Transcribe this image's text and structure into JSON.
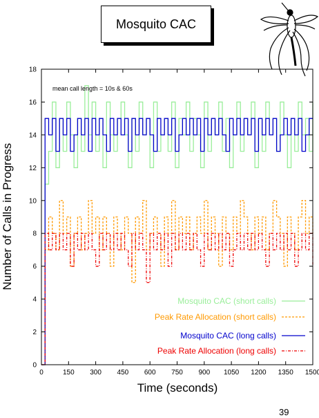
{
  "slide": {
    "title": "Mosquito CAC",
    "page_number": "39"
  },
  "chart_data": {
    "type": "line",
    "annotation": "mean call length = 10s & 60s",
    "xlabel": "Time (seconds)",
    "ylabel": "Number of Calls in Progress",
    "xlim": [
      0,
      1500
    ],
    "ylim": [
      0,
      18
    ],
    "x_ticks": [
      0,
      150,
      300,
      450,
      600,
      750,
      900,
      1050,
      1200,
      1350,
      1500
    ],
    "y_ticks": [
      0,
      2,
      4,
      6,
      8,
      10,
      12,
      14,
      16,
      18
    ],
    "grid": false,
    "legend_position": "bottom-right",
    "series": [
      {
        "name": "Mosquito CAC (short calls)",
        "color": "#99ee99",
        "dash": "solid",
        "x": [
          0,
          20,
          40,
          60,
          80,
          100,
          120,
          140,
          160,
          180,
          200,
          220,
          240,
          260,
          280,
          300,
          320,
          340,
          360,
          380,
          400,
          420,
          440,
          460,
          480,
          500,
          520,
          540,
          560,
          580,
          600,
          620,
          640,
          660,
          680,
          700,
          720,
          740,
          760,
          780,
          800,
          820,
          840,
          860,
          880,
          900,
          920,
          940,
          960,
          980,
          1000,
          1020,
          1040,
          1060,
          1080,
          1100,
          1120,
          1140,
          1160,
          1180,
          1200,
          1220,
          1240,
          1260,
          1280,
          1300,
          1320,
          1340,
          1360,
          1380,
          1400,
          1420,
          1440,
          1460,
          1480,
          1500
        ],
        "y": [
          0,
          11,
          13,
          16,
          12,
          15,
          13,
          16,
          14,
          12,
          15,
          13,
          17,
          14,
          16,
          13,
          15,
          12,
          16,
          14,
          13,
          15,
          16,
          14,
          12,
          15,
          13,
          16,
          14,
          15,
          12,
          16,
          13,
          14,
          15,
          13,
          16,
          12,
          15,
          14,
          16,
          13,
          15,
          14,
          12,
          16,
          13,
          15,
          14,
          16,
          13,
          15,
          12,
          14,
          16,
          13,
          15,
          14,
          16,
          12,
          15,
          13,
          16,
          14,
          15,
          13,
          16,
          14,
          12,
          15,
          13,
          16,
          14,
          15,
          13,
          16
        ]
      },
      {
        "name": "Peak Rate Allocation (short calls)",
        "color": "#ff9900",
        "dash": "3,2",
        "x": [
          0,
          20,
          40,
          60,
          80,
          100,
          120,
          140,
          160,
          180,
          200,
          220,
          240,
          260,
          280,
          300,
          320,
          340,
          360,
          380,
          400,
          420,
          440,
          460,
          480,
          500,
          520,
          540,
          560,
          580,
          600,
          620,
          640,
          660,
          680,
          700,
          720,
          740,
          760,
          780,
          800,
          820,
          840,
          860,
          880,
          900,
          920,
          940,
          960,
          980,
          1000,
          1020,
          1040,
          1060,
          1080,
          1100,
          1120,
          1140,
          1160,
          1180,
          1200,
          1220,
          1240,
          1260,
          1280,
          1300,
          1320,
          1340,
          1360,
          1380,
          1400,
          1420,
          1440,
          1460,
          1480,
          1500
        ],
        "y": [
          0,
          7,
          9,
          8,
          7,
          10,
          8,
          9,
          6,
          8,
          9,
          7,
          8,
          10,
          8,
          9,
          7,
          9,
          8,
          6,
          9,
          8,
          7,
          9,
          8,
          5,
          9,
          8,
          10,
          7,
          8,
          9,
          8,
          6,
          9,
          8,
          10,
          7,
          9,
          8,
          9,
          7,
          8,
          9,
          8,
          10,
          7,
          9,
          8,
          6,
          9,
          8,
          7,
          9,
          8,
          10,
          9,
          8,
          7,
          9,
          8,
          9,
          7,
          8,
          10,
          9,
          8,
          6,
          9,
          8,
          7,
          9,
          10,
          8,
          9,
          8
        ]
      },
      {
        "name": "Mosquito CAC (long calls)",
        "color": "#0000cc",
        "dash": "solid",
        "x": [
          0,
          20,
          40,
          60,
          80,
          100,
          120,
          140,
          160,
          180,
          200,
          220,
          240,
          260,
          280,
          300,
          320,
          340,
          360,
          380,
          400,
          420,
          440,
          460,
          480,
          500,
          520,
          540,
          560,
          580,
          600,
          620,
          640,
          660,
          680,
          700,
          720,
          740,
          760,
          780,
          800,
          820,
          840,
          860,
          880,
          900,
          920,
          940,
          960,
          980,
          1000,
          1020,
          1040,
          1060,
          1080,
          1100,
          1120,
          1140,
          1160,
          1180,
          1200,
          1220,
          1240,
          1260,
          1280,
          1300,
          1320,
          1340,
          1360,
          1380,
          1400,
          1420,
          1440,
          1460,
          1480,
          1500
        ],
        "y": [
          0,
          15,
          14,
          15,
          13,
          15,
          14,
          15,
          13,
          14,
          15,
          14,
          15,
          13,
          15,
          14,
          15,
          14,
          13,
          15,
          14,
          15,
          14,
          15,
          13,
          15,
          14,
          15,
          14,
          15,
          14,
          13,
          15,
          14,
          15,
          14,
          15,
          13,
          14,
          15,
          14,
          15,
          14,
          15,
          13,
          15,
          14,
          15,
          14,
          15,
          14,
          13,
          15,
          14,
          15,
          14,
          15,
          14,
          15,
          13,
          15,
          14,
          15,
          14,
          15,
          13,
          14,
          15,
          14,
          15,
          14,
          15,
          13,
          14,
          15,
          15
        ]
      },
      {
        "name": "Peak Rate Allocation (long calls)",
        "color": "#ee0000",
        "dash": "4,2,1,2",
        "x": [
          0,
          20,
          40,
          60,
          80,
          100,
          120,
          140,
          160,
          180,
          200,
          220,
          240,
          260,
          280,
          300,
          320,
          340,
          360,
          380,
          400,
          420,
          440,
          460,
          480,
          500,
          520,
          540,
          560,
          580,
          600,
          620,
          640,
          660,
          680,
          700,
          720,
          740,
          760,
          780,
          800,
          820,
          840,
          860,
          880,
          900,
          920,
          940,
          960,
          980,
          1000,
          1020,
          1040,
          1060,
          1080,
          1100,
          1120,
          1140,
          1160,
          1180,
          1200,
          1220,
          1240,
          1260,
          1280,
          1300,
          1320,
          1340,
          1360,
          1380,
          1400,
          1420,
          1440,
          1460,
          1480,
          1500
        ],
        "y": [
          0,
          8,
          7,
          8,
          7,
          8,
          7,
          8,
          6,
          8,
          7,
          8,
          7,
          8,
          7,
          6,
          8,
          7,
          8,
          7,
          8,
          7,
          8,
          7,
          6,
          8,
          7,
          8,
          7,
          5,
          8,
          7,
          8,
          7,
          8,
          6,
          8,
          7,
          8,
          7,
          8,
          7,
          8,
          7,
          6,
          8,
          7,
          8,
          7,
          8,
          7,
          8,
          6,
          7,
          8,
          7,
          8,
          7,
          8,
          7,
          8,
          7,
          6,
          8,
          7,
          8,
          7,
          8,
          7,
          8,
          6,
          7,
          8,
          7,
          8,
          6
        ]
      }
    ]
  }
}
